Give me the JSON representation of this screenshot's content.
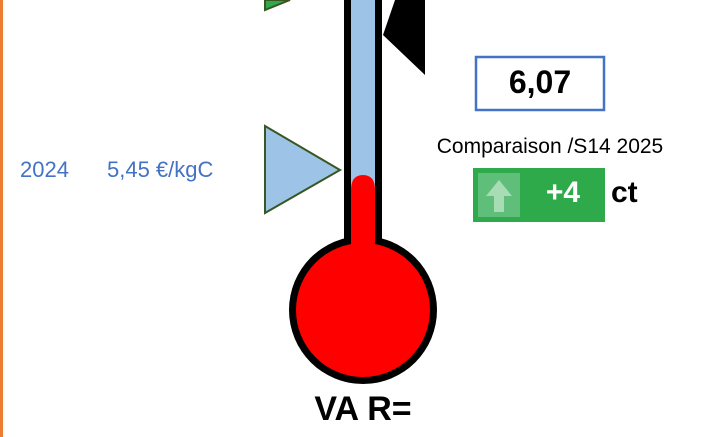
{
  "reference": {
    "year": "2024",
    "price": "5,45 €/kgC"
  },
  "current_value": "6,07",
  "comparison": {
    "label": "Comparaison /S14 2025",
    "change": "+4",
    "unit": "ct"
  },
  "footer": "VA R="
}
